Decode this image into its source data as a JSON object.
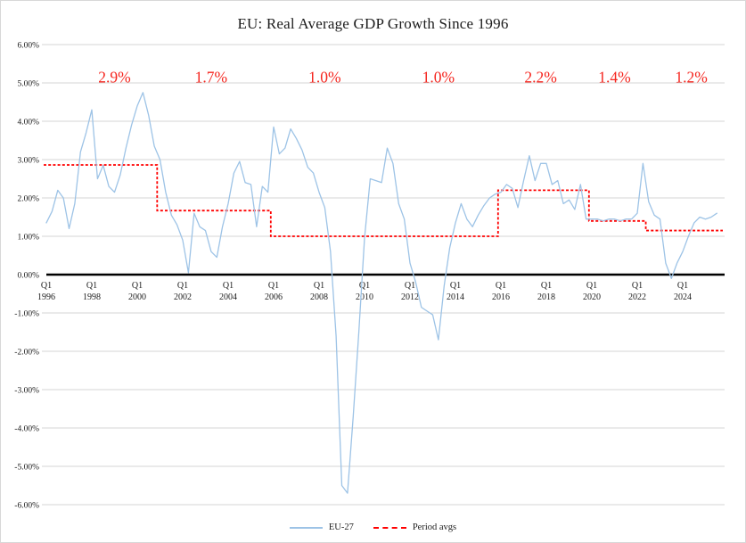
{
  "window": {
    "background": "#ffffff",
    "border_color": "#d8d8d8"
  },
  "colors": {
    "series_blue": "#9dc3e6",
    "series_red": "#ff0000",
    "annotation_red": "#f5261f",
    "gridline": "#d6d6d6",
    "zero_axis": "#000000",
    "text": "#1c1c1c"
  },
  "chart_data": {
    "type": "line",
    "title": "EU: Real Average GDP Growth Since 1996",
    "frequency": "quarterly",
    "x_start": "1996 Q1",
    "x_end": "2025 Q3",
    "ylim": [
      -6,
      6
    ],
    "grid": "horizontal",
    "y_axis": {
      "tick_labels": [
        "6.00%",
        "5.00%",
        "4.00%",
        "3.00%",
        "2.00%",
        "1.00%",
        "0.00%",
        "-1.00%",
        "-2.00%",
        "-3.00%",
        "-4.00%",
        "-5.00%",
        "-6.00%"
      ],
      "tick_values": [
        6,
        5,
        4,
        3,
        2,
        1,
        0,
        -1,
        -2,
        -3,
        -4,
        -5,
        -6
      ]
    },
    "x_axis": {
      "tick_prefix": "Q1",
      "tick_years": [
        "1996",
        "1998",
        "2000",
        "2002",
        "2004",
        "2006",
        "2008",
        "2010",
        "2012",
        "2014",
        "2016",
        "2018",
        "2020",
        "2022",
        "2024"
      ],
      "tick_every_quarters": 8
    },
    "series": [
      {
        "name": "EU-27",
        "color": "#9dc3e6",
        "style": "solid",
        "start": "1996 Q1",
        "values": [
          1.35,
          1.65,
          2.2,
          2.0,
          1.2,
          1.85,
          3.2,
          3.7,
          4.3,
          2.5,
          2.85,
          2.3,
          2.15,
          2.6,
          3.3,
          3.9,
          4.4,
          4.75,
          4.15,
          3.35,
          3.0,
          2.15,
          1.55,
          1.3,
          0.9,
          0.05,
          1.6,
          1.25,
          1.15,
          0.6,
          0.45,
          1.25,
          1.85,
          2.65,
          2.95,
          2.4,
          2.35,
          1.25,
          2.3,
          2.15,
          3.85,
          3.15,
          3.3,
          3.8,
          3.55,
          3.25,
          2.8,
          2.65,
          2.15,
          1.75,
          0.6,
          -1.6,
          -5.5,
          -5.7,
          -3.7,
          -1.5,
          0.95,
          2.5,
          2.45,
          2.4,
          3.3,
          2.9,
          1.85,
          1.45,
          0.3,
          -0.2,
          -0.85,
          -0.95,
          -1.05,
          -1.7,
          -0.3,
          0.7,
          1.35,
          1.85,
          1.45,
          1.25,
          1.55,
          1.8,
          2.0,
          2.1,
          2.15,
          2.35,
          2.25,
          1.75,
          2.45,
          3.1,
          2.45,
          2.9,
          2.9,
          2.35,
          2.45,
          1.85,
          1.95,
          1.7,
          2.35,
          1.45,
          1.45,
          1.45,
          1.4,
          1.45,
          1.45,
          1.4,
          1.45,
          1.45,
          1.6,
          2.9,
          1.9,
          1.55,
          1.45,
          0.3,
          -0.1,
          0.3,
          0.6,
          1.0,
          1.35,
          1.5,
          1.45,
          1.5,
          1.6
        ]
      },
      {
        "name": "Period avgs",
        "color": "#ff0000",
        "style": "dashed-step",
        "segments": [
          {
            "avg_label": "2.9%",
            "value": 2.86,
            "start_q": 0,
            "end_q": 19
          },
          {
            "avg_label": "1.7%",
            "value": 1.67,
            "start_q": 20,
            "end_q": 39
          },
          {
            "avg_label": "1.0%",
            "value": 1.0,
            "start_q": 40,
            "end_q": 79
          },
          {
            "avg_label": "2.2%",
            "value": 2.2,
            "start_q": 80,
            "end_q": 95
          },
          {
            "avg_label": "1.4%",
            "value": 1.4,
            "start_q": 96,
            "end_q": 105
          },
          {
            "avg_label": "1.2%",
            "value": 1.15,
            "start_q": 106,
            "end_q": 118
          }
        ]
      }
    ],
    "annotations": [
      {
        "text": "2.9%",
        "q": 12,
        "y": 5.15
      },
      {
        "text": "1.7%",
        "q": 29,
        "y": 5.15
      },
      {
        "text": "1.0%",
        "q": 49,
        "y": 5.15
      },
      {
        "text": "1.0%",
        "q": 69,
        "y": 5.15
      },
      {
        "text": "2.2%",
        "q": 87,
        "y": 5.15
      },
      {
        "text": "1.4%",
        "q": 100,
        "y": 5.15
      },
      {
        "text": "1.2%",
        "q": 113.5,
        "y": 5.15
      }
    ],
    "legend": {
      "position": "bottom-center",
      "items": [
        {
          "label": "EU-27",
          "color": "#9dc3e6",
          "style": "solid"
        },
        {
          "label": "Period avgs",
          "color": "#ff0000",
          "style": "dashed"
        }
      ]
    }
  }
}
